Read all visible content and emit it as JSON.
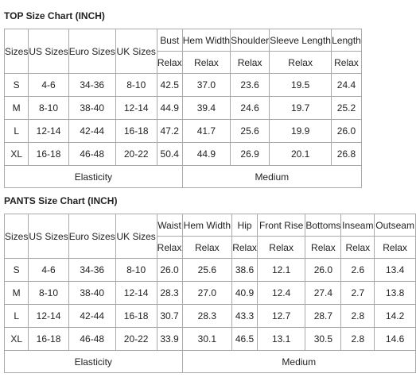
{
  "top": {
    "title": "TOP Size Chart (INCH)",
    "header": [
      "Sizes",
      "US Sizes",
      "Euro Sizes",
      "UK Sizes",
      "Bust",
      "Hem Width",
      "Shoulder",
      "Sleeve Length",
      "Length"
    ],
    "subheader": [
      "Relax",
      "Relax",
      "Relax",
      "Relax",
      "Relax"
    ],
    "rows": [
      [
        "S",
        "4-6",
        "34-36",
        "8-10",
        "42.5",
        "37.0",
        "23.6",
        "19.5",
        "24.4"
      ],
      [
        "M",
        "8-10",
        "38-40",
        "12-14",
        "44.9",
        "39.4",
        "24.6",
        "19.7",
        "25.2"
      ],
      [
        "L",
        "12-14",
        "42-44",
        "16-18",
        "47.2",
        "41.7",
        "25.6",
        "19.9",
        "26.0"
      ],
      [
        "XL",
        "16-18",
        "46-48",
        "20-22",
        "50.4",
        "44.9",
        "26.9",
        "20.1",
        "26.8"
      ]
    ],
    "footer": [
      "Elasticity",
      "Medium"
    ]
  },
  "pants": {
    "title": "PANTS Size Chart (INCH)",
    "header": [
      "Sizes",
      "US Sizes",
      "Euro Sizes",
      "UK Sizes",
      "Waist",
      "Hem Width",
      "Hip",
      "Front Rise",
      "Bottoms",
      "Inseam",
      "Outseam"
    ],
    "subheader": [
      "Relax",
      "Relax",
      "Relax",
      "Relax",
      "Relax",
      "Relax",
      "Relax"
    ],
    "rows": [
      [
        "S",
        "4-6",
        "34-36",
        "8-10",
        "26.0",
        "25.6",
        "38.6",
        "12.1",
        "26.0",
        "2.6",
        "13.4"
      ],
      [
        "M",
        "8-10",
        "38-40",
        "12-14",
        "28.3",
        "27.0",
        "40.9",
        "12.4",
        "27.4",
        "2.7",
        "13.8"
      ],
      [
        "L",
        "12-14",
        "42-44",
        "16-18",
        "30.7",
        "28.3",
        "43.3",
        "12.7",
        "28.7",
        "2.8",
        "14.2"
      ],
      [
        "XL",
        "16-18",
        "46-48",
        "20-22",
        "33.9",
        "30.1",
        "46.5",
        "13.1",
        "30.5",
        "2.8",
        "14.6"
      ]
    ],
    "footer": [
      "Elasticity",
      "Medium"
    ]
  }
}
